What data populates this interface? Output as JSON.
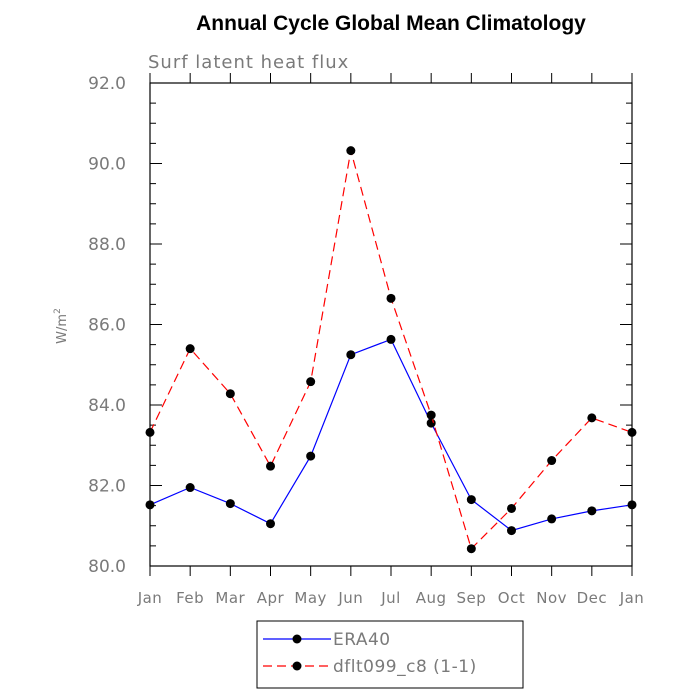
{
  "chart_data": {
    "type": "line",
    "title": "Annual Cycle Global Mean Climatology",
    "subtitle": "Surf latent heat flux",
    "ylabel_base": "W/m",
    "ylabel_sup": "2",
    "xlabel": "",
    "categories": [
      "Jan",
      "Feb",
      "Mar",
      "Apr",
      "May",
      "Jun",
      "Jul",
      "Aug",
      "Sep",
      "Oct",
      "Nov",
      "Dec",
      "Jan"
    ],
    "ylim": [
      80.0,
      92.0
    ],
    "yticks": [
      "80.0",
      "82.0",
      "84.0",
      "86.0",
      "88.0",
      "90.0",
      "92.0"
    ],
    "grid": false,
    "legend_position": "bottom-center",
    "series": [
      {
        "name": "ERA40",
        "color": "#0000ff",
        "dashed": false,
        "values": [
          81.52,
          81.95,
          81.55,
          81.05,
          82.73,
          85.25,
          85.63,
          83.55,
          81.65,
          80.88,
          81.17,
          81.37,
          81.52
        ]
      },
      {
        "name": "dflt099_c8 (1-1)",
        "color": "#ff0000",
        "dashed": true,
        "values": [
          83.32,
          85.4,
          84.28,
          82.48,
          84.58,
          90.32,
          86.65,
          83.75,
          80.43,
          81.43,
          82.62,
          83.68,
          83.32
        ]
      }
    ]
  }
}
